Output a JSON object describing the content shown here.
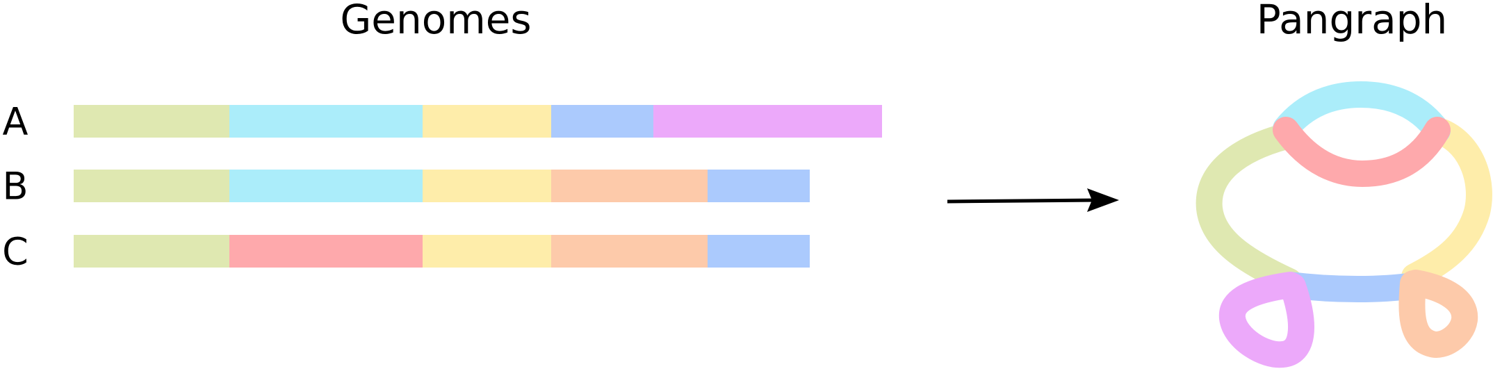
{
  "titles": {
    "left": "Genomes",
    "right": "Pangraph"
  },
  "colors": {
    "green": "#dfe8b1",
    "cyan": "#abedfa",
    "yellow": "#feedaa",
    "blue": "#abcafd",
    "magenta": "#eca9fa",
    "peach": "#fdcaaa",
    "red": "#fea9ac",
    "arrow": "#000000"
  },
  "genomes": [
    {
      "label": "A",
      "blocks": [
        {
          "color": "green",
          "length": 224
        },
        {
          "color": "cyan",
          "length": 278
        },
        {
          "color": "yellow",
          "length": 185
        },
        {
          "color": "blue",
          "length": 147
        },
        {
          "color": "magenta",
          "length": 329
        }
      ]
    },
    {
      "label": "B",
      "blocks": [
        {
          "color": "green",
          "length": 224
        },
        {
          "color": "cyan",
          "length": 278
        },
        {
          "color": "yellow",
          "length": 185
        },
        {
          "color": "peach",
          "length": 225
        },
        {
          "color": "blue",
          "length": 147
        }
      ]
    },
    {
      "label": "C",
      "blocks": [
        {
          "color": "green",
          "length": 224
        },
        {
          "color": "red",
          "length": 278
        },
        {
          "color": "yellow",
          "length": 185
        },
        {
          "color": "peach",
          "length": 225
        },
        {
          "color": "blue",
          "length": 147
        }
      ]
    }
  ]
}
